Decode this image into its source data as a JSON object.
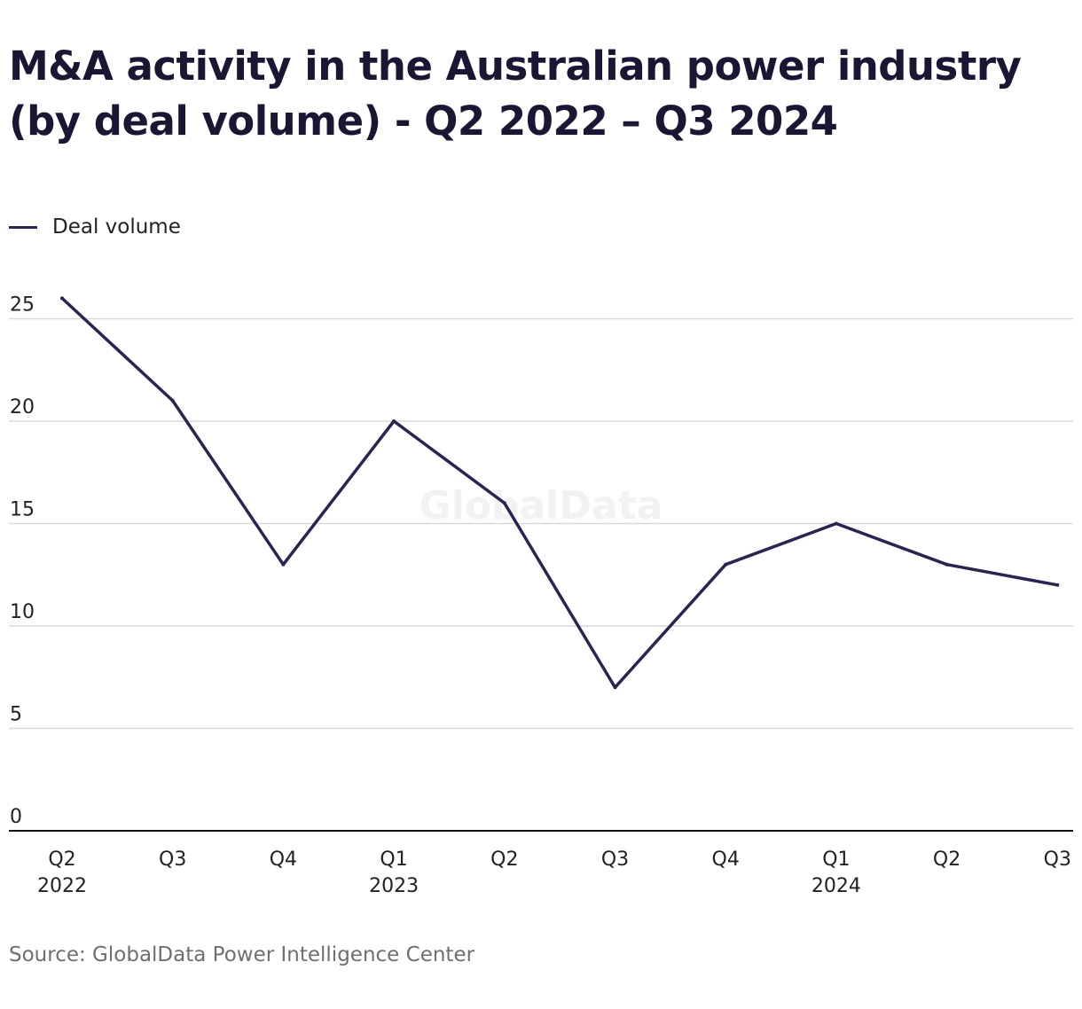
{
  "title": "M&A activity in the Australian power industry (by deal volume) - Q2 2022 – Q3 2024",
  "legend": {
    "label": "Deal volume"
  },
  "source": "Source: GlobalData Power Intelligence Center",
  "watermark": "GlobalData",
  "colors": {
    "line": "#2d2250",
    "grid": "#d9d9d9",
    "axis": "#111111",
    "text": "#222222"
  },
  "chart_data": {
    "type": "line",
    "categories": [
      "Q2 2022",
      "Q3 2022",
      "Q4 2022",
      "Q1 2023",
      "Q2 2023",
      "Q3 2023",
      "Q4 2023",
      "Q1 2024",
      "Q2 2024",
      "Q3 2024"
    ],
    "x_tick_labels": [
      {
        "quarter": "Q2",
        "year": "2022"
      },
      {
        "quarter": "Q3",
        "year": ""
      },
      {
        "quarter": "Q4",
        "year": ""
      },
      {
        "quarter": "Q1",
        "year": "2023"
      },
      {
        "quarter": "Q2",
        "year": ""
      },
      {
        "quarter": "Q3",
        "year": ""
      },
      {
        "quarter": "Q4",
        "year": ""
      },
      {
        "quarter": "Q1",
        "year": "2024"
      },
      {
        "quarter": "Q2",
        "year": ""
      },
      {
        "quarter": "Q3",
        "year": ""
      }
    ],
    "series": [
      {
        "name": "Deal volume",
        "values": [
          26,
          21,
          13,
          20,
          16,
          7,
          13,
          15,
          13,
          12
        ]
      }
    ],
    "y_ticks": [
      0,
      5,
      10,
      15,
      20,
      25
    ],
    "ylim": [
      0,
      26
    ],
    "grid": true,
    "legend_position": "top-left"
  }
}
